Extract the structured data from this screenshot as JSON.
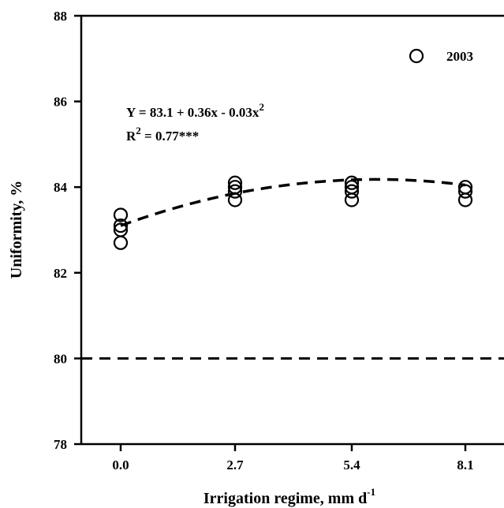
{
  "chart_data": {
    "type": "scatter",
    "title": "",
    "xlabel": "Irrigation regime, mm d",
    "xlabel_superscript": "-1",
    "ylabel": "Uniformity, %",
    "categories": [
      "0.0",
      "2.7",
      "5.4",
      "8.1"
    ],
    "x_ticks": [
      0.0,
      2.7,
      5.4,
      8.1
    ],
    "ylim": [
      78,
      88
    ],
    "y_ticks": [
      78,
      80,
      82,
      84,
      86,
      88
    ],
    "grid": false,
    "legend_position": "top-right",
    "series": [
      {
        "name": "2003",
        "marker": "open-circle",
        "points": [
          {
            "x": 0.0,
            "y": 83.35
          },
          {
            "x": 0.0,
            "y": 83.1
          },
          {
            "x": 0.0,
            "y": 83.0
          },
          {
            "x": 0.0,
            "y": 82.7
          },
          {
            "x": 2.7,
            "y": 84.1
          },
          {
            "x": 2.7,
            "y": 84.0
          },
          {
            "x": 2.7,
            "y": 83.9
          },
          {
            "x": 2.7,
            "y": 83.7
          },
          {
            "x": 5.4,
            "y": 84.1
          },
          {
            "x": 5.4,
            "y": 84.0
          },
          {
            "x": 5.4,
            "y": 83.9
          },
          {
            "x": 5.4,
            "y": 83.7
          },
          {
            "x": 8.1,
            "y": 84.0
          },
          {
            "x": 8.1,
            "y": 83.9
          },
          {
            "x": 8.1,
            "y": 83.7
          }
        ]
      }
    ],
    "fit": {
      "equation_main": "Y = 83.1 + 0.36x - 0.03x",
      "equation_sup": "2",
      "r2_main": "R",
      "r2_sup": "2",
      "r2_rest": " = 0.77***",
      "a": 83.1,
      "b": 0.36,
      "c": -0.03,
      "x_range": [
        0.0,
        8.1
      ],
      "style": "dashed"
    },
    "reference_line": {
      "y": 80,
      "style": "dashed"
    }
  }
}
